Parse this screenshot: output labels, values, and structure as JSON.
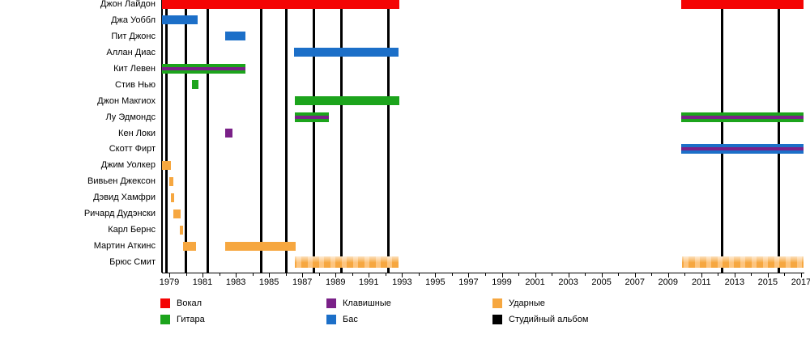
{
  "chart_data": {
    "type": "timeline",
    "title": "",
    "x_axis": {
      "start_year": 1979,
      "end_year": 2017,
      "major_tick_step": 2,
      "minor_tick_step": 1,
      "labels": [
        "1979",
        "1981",
        "1983",
        "1985",
        "1987",
        "1989",
        "1991",
        "1993",
        "1995",
        "1997",
        "1999",
        "2001",
        "2003",
        "2005",
        "2007",
        "2009",
        "2011",
        "2013",
        "2015",
        "2017"
      ]
    },
    "colors": {
      "vocals": "#f40404",
      "guitar": "#1ca41c",
      "keyboards": "#7a2188",
      "bass": "#1c6fc8",
      "drums": "#f6a740",
      "drums_light": "#fdc57f",
      "album": "#000000"
    },
    "albums": [
      1978.85,
      1980.02,
      1981.33,
      1984.55,
      1986.06,
      1987.72,
      1989.33,
      1992.2,
      2012.27,
      2015.68
    ],
    "members": [
      {
        "name": "Джон Лайдон",
        "segments": [
          {
            "from": 1978.56,
            "to": 1992.85,
            "role": "vocals"
          },
          {
            "from": 2009.8,
            "to": 2017.15,
            "role": "vocals"
          }
        ]
      },
      {
        "name": "Джа Уоббл",
        "segments": [
          {
            "from": 1978.56,
            "to": 1980.71,
            "role": "bass"
          }
        ]
      },
      {
        "name": "Пит Джонс",
        "segments": [
          {
            "from": 1982.36,
            "to": 1983.58,
            "role": "bass"
          }
        ]
      },
      {
        "name": "Аллан Диас",
        "segments": [
          {
            "from": 1986.5,
            "to": 1992.79,
            "role": "bass"
          }
        ]
      },
      {
        "name": "Кит Левен",
        "segments": [
          {
            "from": 1978.56,
            "to": 1983.58,
            "role": "guitar+keyboards"
          }
        ]
      },
      {
        "name": "Стив Нью",
        "segments": [
          {
            "from": 1980.36,
            "to": 1980.76,
            "role": "guitar"
          }
        ]
      },
      {
        "name": "Джон Макгиох",
        "segments": [
          {
            "from": 1986.55,
            "to": 1992.85,
            "role": "guitar"
          }
        ]
      },
      {
        "name": "Лу Эдмондс",
        "segments": [
          {
            "from": 1986.55,
            "to": 1988.6,
            "role": "guitar+keyboards"
          },
          {
            "from": 2009.79,
            "to": 2017.15,
            "role": "guitar+keyboards"
          }
        ]
      },
      {
        "name": "Кен Локи",
        "segments": [
          {
            "from": 1982.36,
            "to": 1982.8,
            "role": "keyboards"
          }
        ]
      },
      {
        "name": "Скотт Фирт",
        "segments": [
          {
            "from": 2009.79,
            "to": 2017.15,
            "role": "bass+keyboards"
          }
        ]
      },
      {
        "name": "Джим Уолкер",
        "segments": [
          {
            "from": 1978.56,
            "to": 1979.1,
            "role": "drums"
          }
        ]
      },
      {
        "name": "Вивьен Джексон",
        "segments": [
          {
            "from": 1979.0,
            "to": 1979.25,
            "role": "drums"
          }
        ]
      },
      {
        "name": "Дэвид Хамфри",
        "segments": [
          {
            "from": 1979.1,
            "to": 1979.3,
            "role": "drums"
          }
        ]
      },
      {
        "name": "Ричард Дудэнски",
        "segments": [
          {
            "from": 1979.25,
            "to": 1979.68,
            "role": "drums"
          }
        ]
      },
      {
        "name": "Карл Бернс",
        "segments": [
          {
            "from": 1979.62,
            "to": 1979.83,
            "role": "drums"
          }
        ]
      },
      {
        "name": "Мартин Аткинс",
        "segments": [
          {
            "from": 1979.83,
            "to": 1980.61,
            "role": "drums"
          },
          {
            "from": 1982.36,
            "to": 1986.6,
            "role": "drums"
          }
        ]
      },
      {
        "name": "Брюс Смит",
        "segments": [
          {
            "from": 1986.55,
            "to": 1992.79,
            "role": "drums_pattern"
          },
          {
            "from": 2009.84,
            "to": 2017.15,
            "role": "drums_pattern"
          }
        ]
      }
    ],
    "legend": {
      "columns": [
        [
          {
            "label": "Вокал",
            "color_key": "vocals"
          },
          {
            "label": "Гитара",
            "color_key": "guitar"
          }
        ],
        [
          {
            "label": "Клавишные",
            "color_key": "keyboards"
          },
          {
            "label": "Бас",
            "color_key": "bass"
          }
        ],
        [
          {
            "label": "Ударные",
            "color_key": "drums"
          },
          {
            "label": "Студийный альбом",
            "color_key": "album"
          }
        ]
      ]
    }
  }
}
